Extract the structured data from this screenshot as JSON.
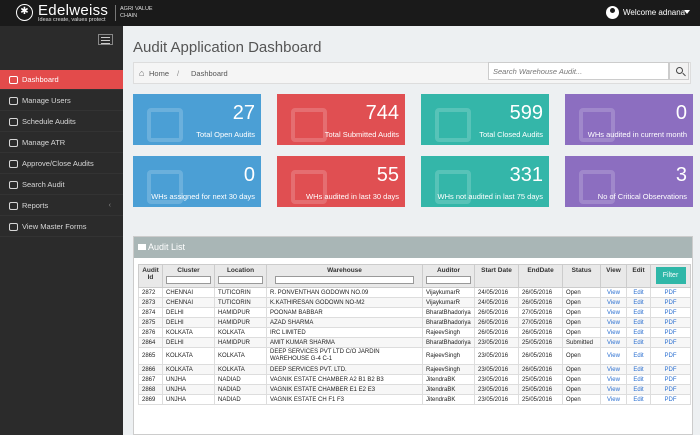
{
  "brand": {
    "name": "Edelweiss",
    "tagline": "Ideas create, values protect",
    "sub": "AGRI VALUE CHAIN"
  },
  "header": {
    "welcome": "Welcome adnana"
  },
  "sidebar": {
    "items": [
      {
        "label": "Dashboard",
        "active": true
      },
      {
        "label": "Manage Users"
      },
      {
        "label": "Schedule Audits"
      },
      {
        "label": "Manage ATR"
      },
      {
        "label": "Approve/Close Audits"
      },
      {
        "label": "Search Audit"
      },
      {
        "label": "Reports",
        "chevron": "‹"
      },
      {
        "label": "View Master Forms"
      }
    ]
  },
  "page": {
    "title": "Audit Application Dashboard"
  },
  "breadcrumb": {
    "home": "Home",
    "sep": "/",
    "current": "Dashboard"
  },
  "search": {
    "placeholder": "Search Warehouse Audit..."
  },
  "cards": [
    {
      "value": "27",
      "label": "Total Open Audits",
      "color": "#4b9fd5"
    },
    {
      "value": "744",
      "label": "Total Submitted Audits",
      "color": "#e04f52"
    },
    {
      "value": "599",
      "label": "Total Closed Audits",
      "color": "#34b6a9"
    },
    {
      "value": "0",
      "label": "WHs audited in current month",
      "color": "#8c6ec0"
    },
    {
      "value": "0",
      "label": "WHs assigned for next 30 days",
      "color": "#4b9fd5"
    },
    {
      "value": "55",
      "label": "WHs audited in last 30 days",
      "color": "#e04f52"
    },
    {
      "value": "331",
      "label": "WHs not audited in last 75 days",
      "color": "#34b6a9"
    },
    {
      "value": "3",
      "label": "No of Critical Observations",
      "color": "#8c6ec0"
    }
  ],
  "audit_list": {
    "title": "Audit List",
    "columns": [
      "Audit Id",
      "Cluster",
      "Location",
      "Warehouse",
      "Auditor",
      "Start Date",
      "EndDate",
      "Status",
      "View",
      "Edit"
    ],
    "filter_label": "Filter",
    "rows": [
      [
        "2872",
        "CHENNAI",
        "TUTICORIN",
        "R. PONVENTHAN GODOWN NO.09",
        "VijaykumarR",
        "24/05/2016",
        "26/05/2016",
        "Open",
        "View",
        "Edit",
        "PDF"
      ],
      [
        "2873",
        "CHENNAI",
        "TUTICORIN",
        "K.KATHIRESAN GODOWN NO-M2",
        "VijaykumarR",
        "24/05/2016",
        "26/05/2016",
        "Open",
        "View",
        "Edit",
        "PDF"
      ],
      [
        "2874",
        "DELHI",
        "HAMIDPUR",
        "POONAM BABBAR",
        "BharatBhadoriya",
        "26/05/2016",
        "27/05/2016",
        "Open",
        "View",
        "Edit",
        "PDF"
      ],
      [
        "2875",
        "DELHI",
        "HAMIDPUR",
        "AZAD SHARMA",
        "BharatBhadoriya",
        "26/05/2016",
        "27/05/2016",
        "Open",
        "View",
        "Edit",
        "PDF"
      ],
      [
        "2876",
        "KOLKATA",
        "KOLKATA",
        "IRC LIMITED",
        "RajeevSingh",
        "26/05/2016",
        "26/05/2016",
        "Open",
        "View",
        "Edit",
        "PDF"
      ],
      [
        "2864",
        "DELHI",
        "HAMIDPUR",
        "AMIT KUMAR SHARMA",
        "BharatBhadoriya",
        "23/05/2016",
        "25/05/2016",
        "Submitted",
        "View",
        "Edit",
        "PDF"
      ],
      [
        "2865",
        "KOLKATA",
        "KOLKATA",
        "DEEP SERVICES PVT LTD C/O JARDIN WAREHOUSE G-4 C-1",
        "RajeevSingh",
        "23/05/2016",
        "26/05/2016",
        "Open",
        "View",
        "Edit",
        "PDF"
      ],
      [
        "2866",
        "KOLKATA",
        "KOLKATA",
        "DEEP SERVICES PVT. LTD.",
        "RajeevSingh",
        "23/05/2016",
        "26/05/2016",
        "Open",
        "View",
        "Edit",
        "PDF"
      ],
      [
        "2867",
        "UNJHA",
        "NADIAD",
        "VAGNIK ESTATE CHAMBER A2 B1 B2 B3",
        "JitendraBK",
        "23/05/2016",
        "25/05/2016",
        "Open",
        "View",
        "Edit",
        "PDF"
      ],
      [
        "2868",
        "UNJHA",
        "NADIAD",
        "VAGNIK ESTATE CHAMBER E1 E2 E3",
        "JitendraBK",
        "23/05/2016",
        "25/05/2016",
        "Open",
        "View",
        "Edit",
        "PDF"
      ],
      [
        "2869",
        "UNJHA",
        "NADIAD",
        "VAGNIK ESTATE CH F1 F3",
        "JitendraBK",
        "23/05/2016",
        "25/05/2016",
        "Open",
        "View",
        "Edit",
        "PDF"
      ]
    ]
  }
}
